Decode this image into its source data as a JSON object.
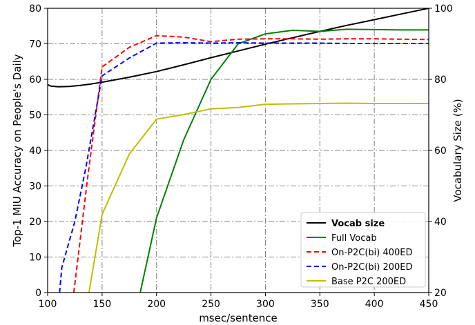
{
  "chart_data": {
    "type": "line",
    "xlabel": "msec/sentence",
    "ylabel_left": "Top-1 MIU Accuracy on People's Daily",
    "ylabel_right": "Vocabulary Size  (%)",
    "xlim": [
      100,
      450
    ],
    "ylim_left": [
      0,
      80
    ],
    "ylim_right": [
      20,
      100
    ],
    "x_ticks": [
      100,
      150,
      200,
      250,
      300,
      350,
      400,
      450
    ],
    "y_ticks_left": [
      0,
      10,
      20,
      30,
      40,
      50,
      60,
      70,
      80
    ],
    "y_ticks_right": [
      20,
      40,
      60,
      80,
      100
    ],
    "grid": true,
    "legend_position": "lower-right",
    "series": [
      {
        "name": "Vocab size",
        "axis": "right",
        "color": "#000000",
        "style": "solid",
        "bold_label": true,
        "x": [
          100,
          103,
          110,
          120,
          130,
          140,
          150,
          175,
          200,
          225,
          250,
          275,
          300,
          325,
          350,
          375,
          400,
          425,
          450
        ],
        "y": [
          78.5,
          78.1,
          77.9,
          78.0,
          78.3,
          78.7,
          79.2,
          80.6,
          82.2,
          84.1,
          86.1,
          88.0,
          89.9,
          91.7,
          93.5,
          95.2,
          96.8,
          98.4,
          100.0
        ]
      },
      {
        "name": "Full Vocab",
        "axis": "left",
        "color": "#008000",
        "style": "solid",
        "x": [
          185,
          200,
          225,
          250,
          275,
          300,
          325,
          350,
          375,
          400,
          425,
          450
        ],
        "y": [
          0,
          21,
          43,
          60,
          70,
          72.8,
          73.8,
          73.5,
          74.1,
          74.0,
          73.9,
          73.9
        ]
      },
      {
        "name": "On-P2C(bi) 400ED",
        "axis": "left",
        "color": "#ff0000",
        "style": "dashed",
        "x": [
          124,
          137,
          150,
          175,
          200,
          225,
          250,
          275,
          300,
          325,
          350,
          375,
          400,
          425,
          450
        ],
        "y": [
          0,
          33,
          63.5,
          69,
          72.3,
          71.9,
          70.6,
          71.3,
          71.4,
          71.4,
          71.3,
          71.4,
          71.4,
          71.3,
          71.2
        ]
      },
      {
        "name": "On-P2C(bi) 200ED",
        "axis": "left",
        "color": "#0000ff",
        "style": "dashed",
        "x": [
          111,
          113,
          125,
          135,
          150,
          175,
          200,
          225,
          250,
          275,
          300,
          325,
          350,
          375,
          400,
          425,
          450
        ],
        "y": [
          0,
          7,
          20,
          35,
          61,
          66,
          70.2,
          70.3,
          70.2,
          70.3,
          70.2,
          70.2,
          70.2,
          70.1,
          70.1,
          70.1,
          70.1
        ]
      },
      {
        "name": "Base P2C 200ED",
        "axis": "left",
        "color": "#bfbf00",
        "style": "solid",
        "x": [
          138,
          150,
          175,
          200,
          225,
          250,
          275,
          300,
          325,
          350,
          375,
          400,
          425,
          450
        ],
        "y": [
          0,
          22,
          39,
          48.8,
          50.1,
          51.7,
          52.1,
          53.0,
          53.1,
          53.2,
          53.3,
          53.2,
          53.2,
          53.2
        ]
      }
    ]
  }
}
